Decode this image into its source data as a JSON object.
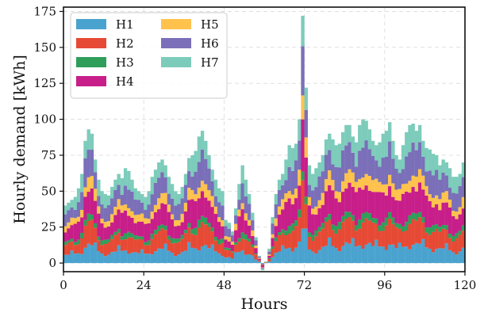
{
  "chart_data": {
    "type": "bar",
    "stacked": true,
    "xlabel": "Hours",
    "ylabel": "Hourly demand [kWh]",
    "xlim": [
      0,
      120
    ],
    "ylim": [
      -6,
      178
    ],
    "xticks": [
      "0",
      "24",
      "48",
      "72",
      "96",
      "120"
    ],
    "yticks": [
      "0",
      "25",
      "50",
      "75",
      "100",
      "125",
      "150",
      "175"
    ],
    "grid": true,
    "legend": {
      "position": "top-left",
      "columns": 2
    },
    "series": [
      {
        "name": "H1",
        "color": "#4aa3cf"
      },
      {
        "name": "H2",
        "color": "#e64a35"
      },
      {
        "name": "H3",
        "color": "#2e9e5a"
      },
      {
        "name": "H4",
        "color": "#c71e8a"
      },
      {
        "name": "H5",
        "color": "#ffc24d"
      },
      {
        "name": "H6",
        "color": "#7a6fb8"
      },
      {
        "name": "H7",
        "color": "#7dccbb"
      }
    ],
    "shares": [
      0.14,
      0.16,
      0.05,
      0.21,
      0.09,
      0.19,
      0.16
    ],
    "hourly_total": [
      40,
      42,
      44,
      46,
      52,
      62,
      85,
      93,
      90,
      72,
      58,
      50,
      48,
      47,
      53,
      58,
      62,
      59,
      66,
      64,
      58,
      52,
      50,
      48,
      46,
      50,
      60,
      65,
      70,
      72,
      68,
      60,
      55,
      50,
      48,
      53,
      62,
      73,
      75,
      78,
      88,
      92,
      85,
      75,
      65,
      58,
      52,
      50,
      30,
      28,
      22,
      38,
      55,
      68,
      58,
      48,
      35,
      18,
      5,
      -5,
      1,
      10,
      32,
      48,
      58,
      62,
      72,
      82,
      80,
      83,
      100,
      172,
      122,
      68,
      62,
      66,
      70,
      75,
      86,
      90,
      86,
      82,
      83,
      91,
      96,
      96,
      88,
      84,
      96,
      100,
      99,
      93,
      85,
      82,
      84,
      90,
      92,
      98,
      85,
      75,
      72,
      82,
      91,
      96,
      97,
      92,
      96,
      85,
      80,
      79,
      76,
      75,
      68,
      72,
      70,
      66,
      60,
      60,
      62,
      70
    ]
  }
}
